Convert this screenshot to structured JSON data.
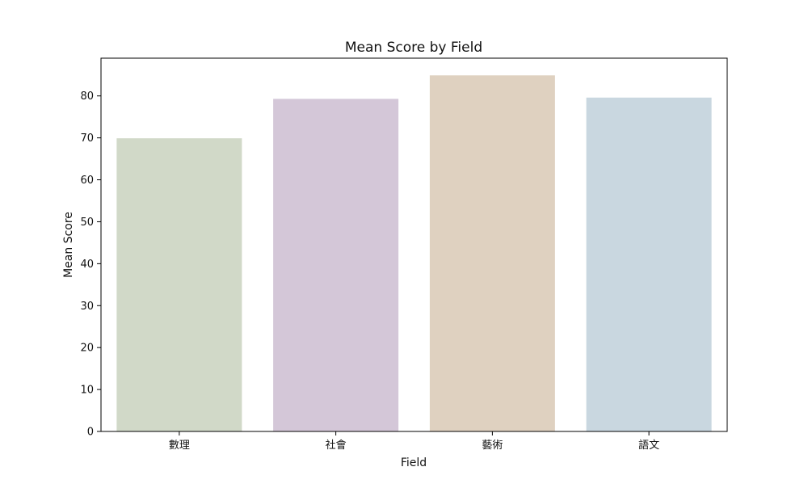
{
  "chart_data": {
    "type": "bar",
    "title": "Mean Score by Field",
    "xlabel": "Field",
    "ylabel": "Mean Score",
    "categories": [
      "數理",
      "社會",
      "藝術",
      "語文"
    ],
    "values": [
      69.9,
      79.3,
      84.9,
      79.6
    ],
    "colors": [
      "#d1d9c8",
      "#d4c7d8",
      "#dfd1c0",
      "#c9d7e0"
    ],
    "ylim": [
      0,
      89
    ],
    "yticks": [
      0,
      10,
      20,
      30,
      40,
      50,
      60,
      70,
      80
    ],
    "grid": false,
    "legend": "none"
  }
}
